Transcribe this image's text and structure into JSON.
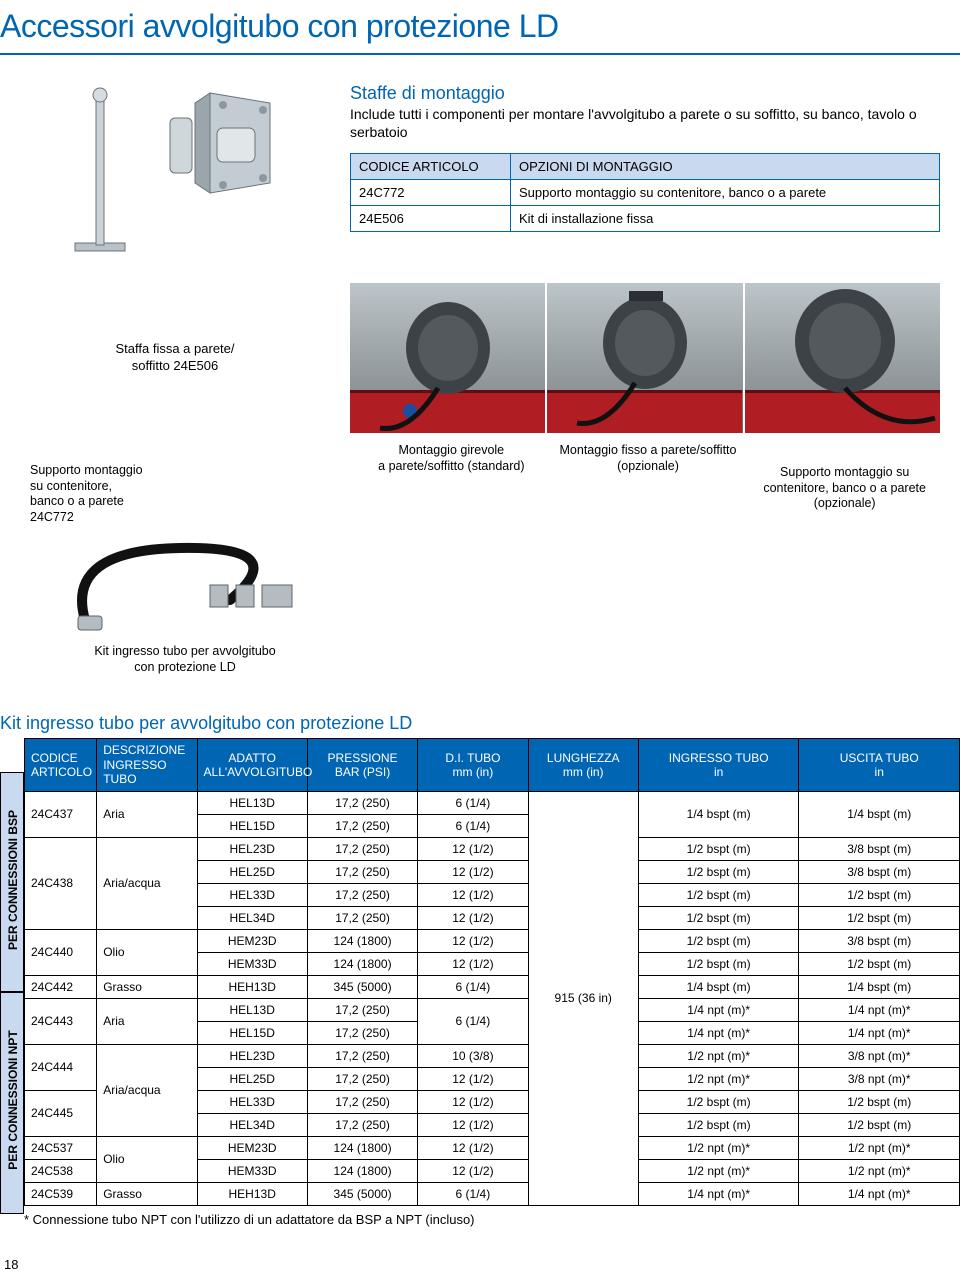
{
  "page": {
    "title": "Accessori avvolgitubo con protezione LD",
    "number": "18"
  },
  "mounting": {
    "heading": "Staffe di montaggio",
    "description": "Include tutti i componenti per montare l'avvolgitubo a parete o su soffitto, su banco, tavolo o serbatoio",
    "table": {
      "headers": {
        "code": "CODICE ARTICOLO",
        "options": "OPZIONI DI MONTAGGIO"
      },
      "rows": [
        {
          "code": "24C772",
          "options": "Supporto montaggio su contenitore, banco o a parete"
        },
        {
          "code": "24E506",
          "options": "Kit di installazione fissa"
        }
      ]
    },
    "fixed_bracket_caption": "Staffa fissa a parete/\nsoffitto 24E506"
  },
  "captions": {
    "support_24C772": "Supporto montaggio\nsu contenitore,\nbanco o a parete\n24C772",
    "kit_inlet": "Kit ingresso tubo per avvolgitubo\ncon protezione LD",
    "swivel": "Montaggio girevole\na parete/soffitto (standard)",
    "fixed": "Montaggio fisso a parete/soffitto\n(opzionale)",
    "support_opt": "Supporto montaggio su\ncontenitore, banco o a parete\n(opzionale)"
  },
  "kit_table": {
    "heading": "Kit ingresso tubo per avvolgitubo con protezione LD",
    "vtabs": {
      "bsp": "PER CONNESSIONI BSP",
      "npt": "PER CONNESSIONI NPT"
    },
    "headers": {
      "code": "CODICE\nARTICOLO",
      "desc": "DESCRIZIONE\nINGRESSO TUBO",
      "adatto": "ADATTO\nALL'AVVOLGITUBO",
      "pressure": "PRESSIONE\nBAR (PSI)",
      "di": "D.I. TUBO\nmm (in)",
      "length": "LUNGHEZZA\nmm (in)",
      "inlet": "INGRESSO TUBO\nin",
      "outlet": "USCITA TUBO\nin"
    },
    "length_value": "915 (36 in)",
    "rows": [
      {
        "code": "24C437",
        "desc": "Aria",
        "adatto": "HEL13D",
        "press": "17,2 (250)",
        "di": "6 (1/4)",
        "in": "1/4 bspt (m)",
        "out": "1/4 bspt (m)",
        "code_rs": 2,
        "desc_rs": 2,
        "in_rs": 2,
        "out_rs": 2,
        "di_rs": 1
      },
      {
        "adatto": "HEL15D",
        "press": "17,2 (250)",
        "di": "6 (1/4)"
      },
      {
        "code": "24C438",
        "desc": "Aria/acqua",
        "adatto": "HEL23D",
        "press": "17,2 (250)",
        "di": "12 (1/2)",
        "in": "1/2 bspt (m)",
        "out": "3/8 bspt (m)",
        "code_rs": 4,
        "desc_rs": 4
      },
      {
        "adatto": "HEL25D",
        "press": "17,2 (250)",
        "di": "12 (1/2)",
        "in": "1/2 bspt (m)",
        "out": "3/8 bspt (m)"
      },
      {
        "adatto": "HEL33D",
        "press": "17,2 (250)",
        "di": "12 (1/2)",
        "in": "1/2 bspt (m)",
        "out": "1/2 bspt (m)"
      },
      {
        "adatto": "HEL34D",
        "press": "17,2 (250)",
        "di": "12 (1/2)",
        "in": "1/2 bspt (m)",
        "out": "1/2 bspt (m)"
      },
      {
        "code": "24C440",
        "desc": "Olio",
        "adatto": "HEM23D",
        "press": "124 (1800)",
        "di": "12 (1/2)",
        "in": "1/2 bspt (m)",
        "out": "3/8 bspt (m)",
        "code_rs": 2,
        "desc_rs": 2
      },
      {
        "adatto": "HEM33D",
        "press": "124 (1800)",
        "di": "12 (1/2)",
        "in": "1/2 bspt (m)",
        "out": "1/2 bspt (m)"
      },
      {
        "code": "24C442",
        "desc": "Grasso",
        "adatto": "HEH13D",
        "press": "345 (5000)",
        "di": "6 (1/4)",
        "in": "1/4 bspt (m)",
        "out": "1/4 bspt (m)"
      },
      {
        "code": "24C443",
        "desc": "Aria",
        "adatto": "HEL13D",
        "press": "17,2 (250)",
        "di": "6 (1/4)",
        "in": "1/4 npt (m)*",
        "out": "1/4 npt (m)*",
        "code_rs": 2,
        "desc_rs": 2,
        "di_rs": 2,
        "npt_start": true
      },
      {
        "adatto": "HEL15D",
        "press": "17,2 (250)",
        "in": "1/4 npt (m)*",
        "out": "1/4 npt (m)*"
      },
      {
        "code": "24C444",
        "desc": "Aria/acqua",
        "adatto": "HEL23D",
        "press": "17,2 (250)",
        "di": "10 (3/8)",
        "in": "1/2 npt (m)*",
        "out": "3/8 npt (m)*",
        "code_rs": 2,
        "desc_rs": 4
      },
      {
        "adatto": "HEL25D",
        "press": "17,2 (250)",
        "di": "12 (1/2)",
        "in": "1/2 npt (m)*",
        "out": "3/8 npt (m)*"
      },
      {
        "code": "24C445",
        "adatto": "HEL33D",
        "press": "17,2 (250)",
        "di": "12 (1/2)",
        "in": "1/2 bspt (m)",
        "out": "1/2 bspt (m)",
        "code_rs": 2
      },
      {
        "adatto": "HEL34D",
        "press": "17,2 (250)",
        "di": "12 (1/2)",
        "in": "1/2 bspt (m)",
        "out": "1/2 bspt (m)"
      },
      {
        "code": "24C537",
        "desc": "Olio",
        "adatto": "HEM23D",
        "press": "124 (1800)",
        "di": "12 (1/2)",
        "in": "1/2 npt (m)*",
        "out": "1/2 npt (m)*",
        "desc_rs": 2
      },
      {
        "code": "24C538",
        "adatto": "HEM33D",
        "press": "124 (1800)",
        "di": "12 (1/2)",
        "in": "1/2 npt (m)*",
        "out": "1/2 npt (m)*"
      },
      {
        "code": "24C539",
        "desc": "Grasso",
        "adatto": "HEH13D",
        "press": "345 (5000)",
        "di": "6 (1/4)",
        "in": "1/4 npt (m)*",
        "out": "1/4 npt (m)*"
      }
    ],
    "footnote": "* Connessione tubo NPT con l'utilizzo di un adattatore da BSP a NPT (incluso)"
  },
  "colors": {
    "brand_blue": "#0066b3",
    "header_bg": "#c9d9ef",
    "table_header_bg": "#0066b3",
    "table_header_fg": "#ffffff"
  }
}
